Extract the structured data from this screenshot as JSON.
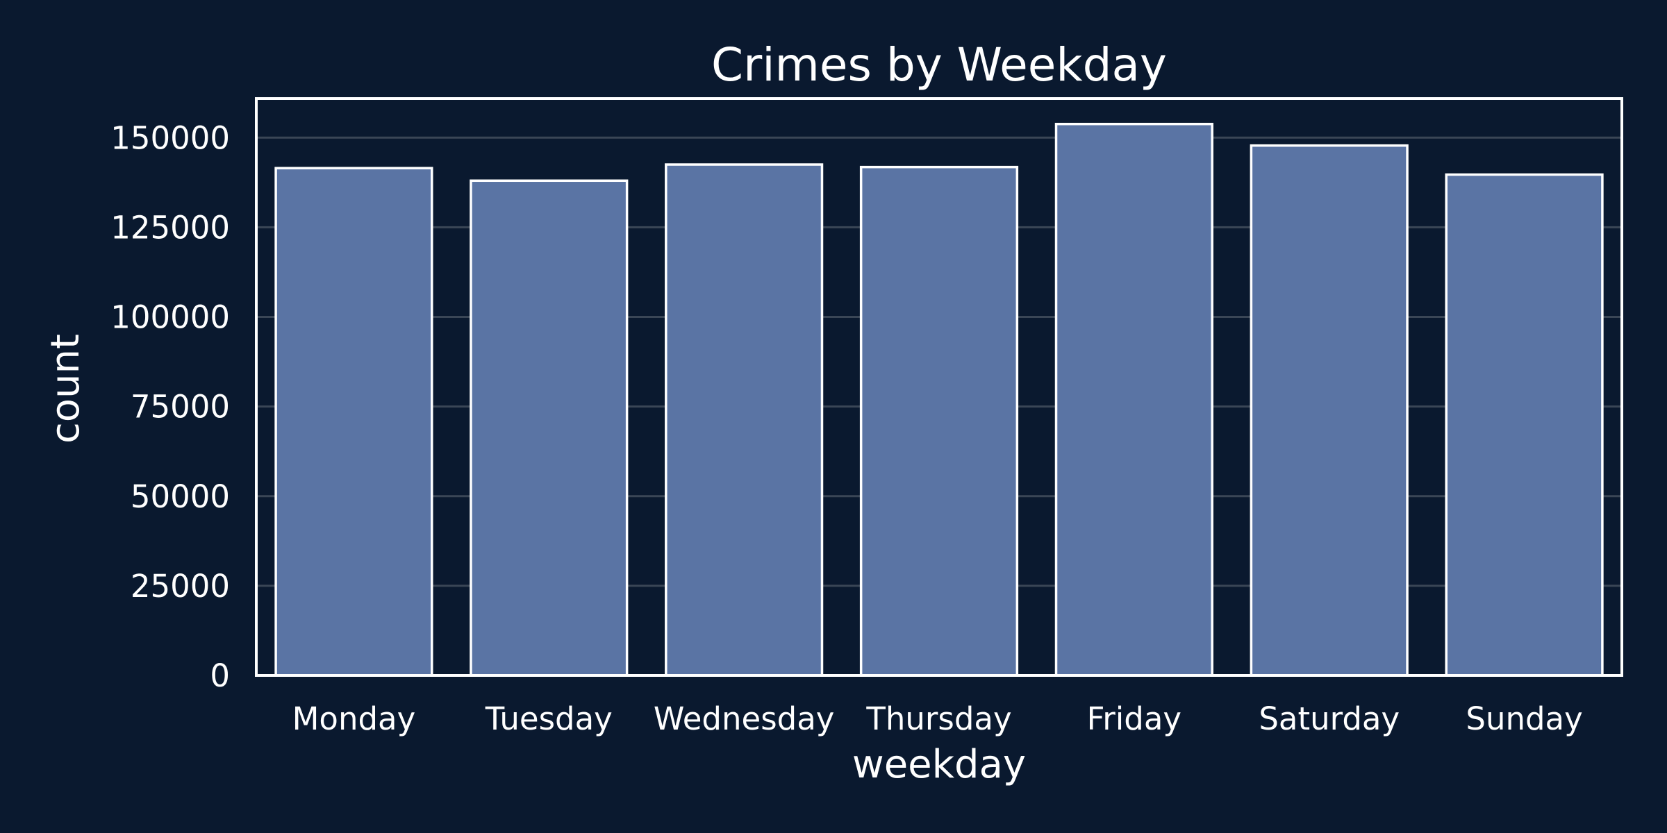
{
  "colors": {
    "background": "#0a192f",
    "bar_fill": "#5a74a4",
    "bar_edge": "#ffffff",
    "grid": "#3a4656",
    "text": "#ffffff"
  },
  "chart_data": {
    "type": "bar",
    "title": "Crimes by Weekday",
    "xlabel": "weekday",
    "ylabel": "count",
    "categories": [
      "Monday",
      "Tuesday",
      "Wednesday",
      "Thursday",
      "Friday",
      "Saturday",
      "Sunday"
    ],
    "values": [
      141500,
      138000,
      142500,
      141800,
      153800,
      147800,
      139700
    ],
    "ylim": [
      0,
      160900
    ],
    "yticks": [
      0,
      25000,
      50000,
      75000,
      100000,
      125000,
      150000
    ],
    "ytick_labels": [
      "0",
      "25000",
      "50000",
      "75000",
      "100000",
      "125000",
      "150000"
    ],
    "grid": true,
    "legend": "none"
  }
}
